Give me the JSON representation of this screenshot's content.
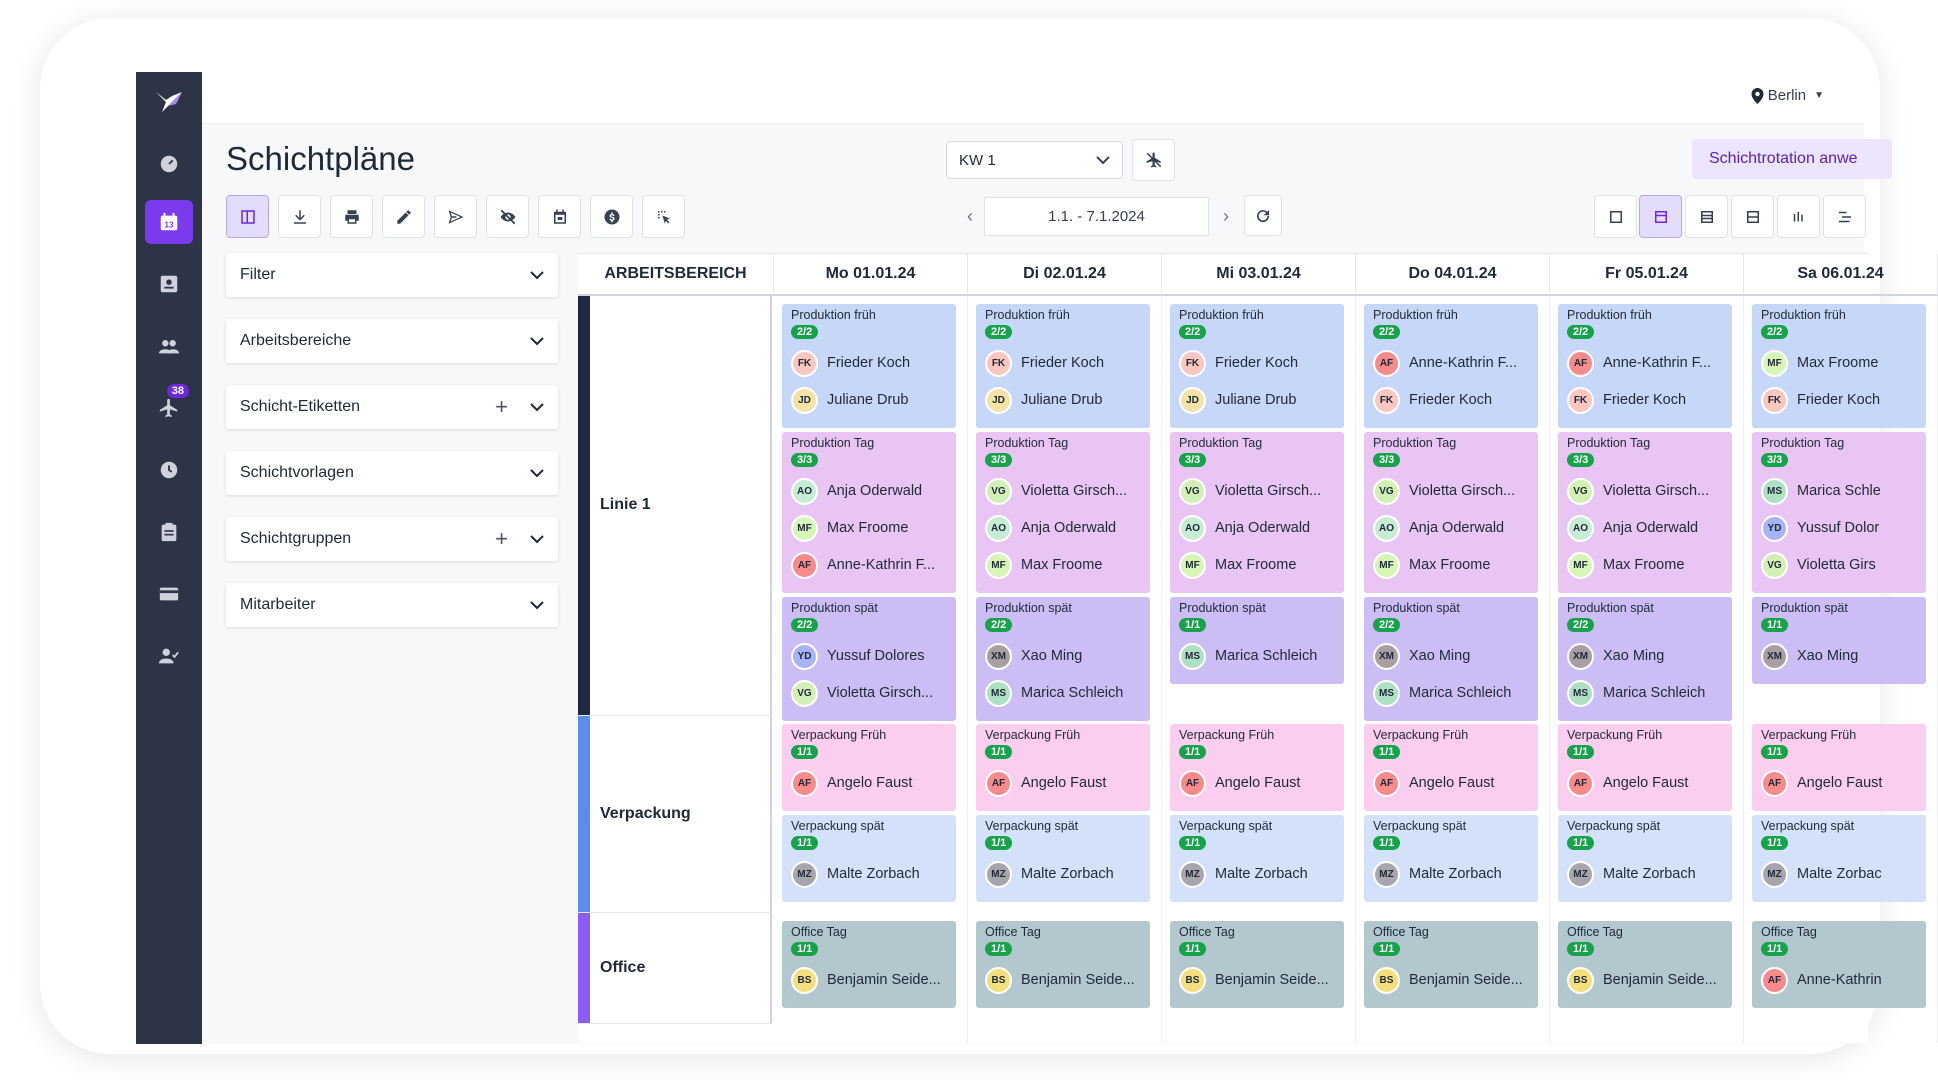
{
  "location": "Berlin",
  "page_title": "Schichtpläne",
  "week_select": "KW 1",
  "date_range": "1.1. - 7.1.2024",
  "rotation_button": "Schichtrotation anwe",
  "rail_badge": "38",
  "rail_calendar_day": "13",
  "panels": [
    "Filter",
    "Arbeitsbereiche",
    "Schicht-Etiketten",
    "Schichtvorlagen",
    "Schichtgruppen",
    "Mitarbeiter"
  ],
  "panel_plus": "+",
  "area_header": "ARBEITSBEREICH",
  "days": [
    "Mo 01.01.24",
    "Di 02.01.24",
    "Mi 03.01.24",
    "Do 04.01.24",
    "Fr 05.01.24",
    "Sa 06.01.24"
  ],
  "areas": [
    {
      "name": "Linie 1",
      "color": "#1e2a44"
    },
    {
      "name": "Verpackung",
      "color": "#5b8def"
    },
    {
      "name": "Office",
      "color": "#8b5cf6"
    }
  ],
  "colors": {
    "früh": "#c7d7f7",
    "tag": "#e8c5f3",
    "spät": "#cdbdf5",
    "vfrüh": "#fbcdef",
    "vspät": "#d3e2fa",
    "office": "#b3c7cf",
    "accent": "#7c3aed",
    "count_pill": "#16a34a"
  },
  "avatar_colors": {
    "FK": "#f9c6c0",
    "JD": "#f3e3a7",
    "AO": "#c6ecd5",
    "MF": "#d6f5b6",
    "AF": "#f78a8a",
    "VG": "#d2f0b5",
    "YD": "#a7b3f5",
    "XM": "#a89ea4",
    "MS": "#aee1c4",
    "MZ": "#a7a5ae",
    "BS": "#f3e07d"
  },
  "schedule": [
    [
      [
        {
          "t": "Produktion früh",
          "c": "2/2",
          "k": "früh",
          "e": [
            [
              "FK",
              "Frieder Koch"
            ],
            [
              "JD",
              "Juliane Drub"
            ]
          ]
        },
        {
          "t": "Produktion Tag",
          "c": "3/3",
          "k": "tag",
          "e": [
            [
              "AO",
              "Anja Oderwald"
            ],
            [
              "MF",
              "Max Froome"
            ],
            [
              "AF",
              "Anne-Kathrin F..."
            ]
          ]
        },
        {
          "t": "Produktion spät",
          "c": "2/2",
          "k": "spät",
          "e": [
            [
              "YD",
              "Yussuf Dolores"
            ],
            [
              "VG",
              "Violetta Girsch..."
            ]
          ]
        }
      ],
      [
        {
          "t": "Produktion früh",
          "c": "2/2",
          "k": "früh",
          "e": [
            [
              "FK",
              "Frieder Koch"
            ],
            [
              "JD",
              "Juliane Drub"
            ]
          ]
        },
        {
          "t": "Produktion Tag",
          "c": "3/3",
          "k": "tag",
          "e": [
            [
              "VG",
              "Violetta Girsch..."
            ],
            [
              "AO",
              "Anja Oderwald"
            ],
            [
              "MF",
              "Max Froome"
            ]
          ]
        },
        {
          "t": "Produktion spät",
          "c": "2/2",
          "k": "spät",
          "e": [
            [
              "XM",
              "Xao Ming"
            ],
            [
              "MS",
              "Marica Schleich"
            ]
          ]
        }
      ],
      [
        {
          "t": "Produktion früh",
          "c": "2/2",
          "k": "früh",
          "e": [
            [
              "FK",
              "Frieder Koch"
            ],
            [
              "JD",
              "Juliane Drub"
            ]
          ]
        },
        {
          "t": "Produktion Tag",
          "c": "3/3",
          "k": "tag",
          "e": [
            [
              "VG",
              "Violetta Girsch..."
            ],
            [
              "AO",
              "Anja Oderwald"
            ],
            [
              "MF",
              "Max Froome"
            ]
          ]
        },
        {
          "t": "Produktion spät",
          "c": "1/1",
          "k": "spät",
          "e": [
            [
              "MS",
              "Marica Schleich"
            ]
          ]
        }
      ],
      [
        {
          "t": "Produktion früh",
          "c": "2/2",
          "k": "früh",
          "e": [
            [
              "AF",
              "Anne-Kathrin F..."
            ],
            [
              "FK",
              "Frieder Koch"
            ]
          ]
        },
        {
          "t": "Produktion Tag",
          "c": "3/3",
          "k": "tag",
          "e": [
            [
              "VG",
              "Violetta Girsch..."
            ],
            [
              "AO",
              "Anja Oderwald"
            ],
            [
              "MF",
              "Max Froome"
            ]
          ]
        },
        {
          "t": "Produktion spät",
          "c": "2/2",
          "k": "spät",
          "e": [
            [
              "XM",
              "Xao Ming"
            ],
            [
              "MS",
              "Marica Schleich"
            ]
          ]
        }
      ],
      [
        {
          "t": "Produktion früh",
          "c": "2/2",
          "k": "früh",
          "e": [
            [
              "AF",
              "Anne-Kathrin F..."
            ],
            [
              "FK",
              "Frieder Koch"
            ]
          ]
        },
        {
          "t": "Produktion Tag",
          "c": "3/3",
          "k": "tag",
          "e": [
            [
              "VG",
              "Violetta Girsch..."
            ],
            [
              "AO",
              "Anja Oderwald"
            ],
            [
              "MF",
              "Max Froome"
            ]
          ]
        },
        {
          "t": "Produktion spät",
          "c": "2/2",
          "k": "spät",
          "e": [
            [
              "XM",
              "Xao Ming"
            ],
            [
              "MS",
              "Marica Schleich"
            ]
          ]
        }
      ],
      [
        {
          "t": "Produktion früh",
          "c": "2/2",
          "k": "früh",
          "e": [
            [
              "MF",
              "Max Froome"
            ],
            [
              "FK",
              "Frieder Koch"
            ]
          ]
        },
        {
          "t": "Produktion Tag",
          "c": "3/3",
          "k": "tag",
          "e": [
            [
              "MS",
              "Marica Schle"
            ],
            [
              "YD",
              "Yussuf Dolor"
            ],
            [
              "VG",
              "Violetta Girs"
            ]
          ]
        },
        {
          "t": "Produktion spät",
          "c": "1/1",
          "k": "spät",
          "e": [
            [
              "XM",
              "Xao Ming"
            ]
          ]
        }
      ]
    ],
    [
      [
        {
          "t": "Verpackung Früh",
          "c": "1/1",
          "k": "vfrüh",
          "e": [
            [
              "AF",
              "Angelo Faust"
            ]
          ]
        },
        {
          "t": "Verpackung spät",
          "c": "1/1",
          "k": "vspät",
          "e": [
            [
              "MZ",
              "Malte Zorbach"
            ]
          ]
        }
      ],
      [
        {
          "t": "Verpackung Früh",
          "c": "1/1",
          "k": "vfrüh",
          "e": [
            [
              "AF",
              "Angelo Faust"
            ]
          ]
        },
        {
          "t": "Verpackung spät",
          "c": "1/1",
          "k": "vspät",
          "e": [
            [
              "MZ",
              "Malte Zorbach"
            ]
          ]
        }
      ],
      [
        {
          "t": "Verpackung Früh",
          "c": "1/1",
          "k": "vfrüh",
          "e": [
            [
              "AF",
              "Angelo Faust"
            ]
          ]
        },
        {
          "t": "Verpackung spät",
          "c": "1/1",
          "k": "vspät",
          "e": [
            [
              "MZ",
              "Malte Zorbach"
            ]
          ]
        }
      ],
      [
        {
          "t": "Verpackung Früh",
          "c": "1/1",
          "k": "vfrüh",
          "e": [
            [
              "AF",
              "Angelo Faust"
            ]
          ]
        },
        {
          "t": "Verpackung spät",
          "c": "1/1",
          "k": "vspät",
          "e": [
            [
              "MZ",
              "Malte Zorbach"
            ]
          ]
        }
      ],
      [
        {
          "t": "Verpackung Früh",
          "c": "1/1",
          "k": "vfrüh",
          "e": [
            [
              "AF",
              "Angelo Faust"
            ]
          ]
        },
        {
          "t": "Verpackung spät",
          "c": "1/1",
          "k": "vspät",
          "e": [
            [
              "MZ",
              "Malte Zorbach"
            ]
          ]
        }
      ],
      [
        {
          "t": "Verpackung Früh",
          "c": "1/1",
          "k": "vfrüh",
          "e": [
            [
              "AF",
              "Angelo Faust"
            ]
          ]
        },
        {
          "t": "Verpackung spät",
          "c": "1/1",
          "k": "vspät",
          "e": [
            [
              "MZ",
              "Malte Zorbac"
            ]
          ]
        }
      ]
    ],
    [
      [
        {
          "t": "Office Tag",
          "c": "1/1",
          "k": "office",
          "e": [
            [
              "BS",
              "Benjamin Seide..."
            ]
          ]
        }
      ],
      [
        {
          "t": "Office Tag",
          "c": "1/1",
          "k": "office",
          "e": [
            [
              "BS",
              "Benjamin Seide..."
            ]
          ]
        }
      ],
      [
        {
          "t": "Office Tag",
          "c": "1/1",
          "k": "office",
          "e": [
            [
              "BS",
              "Benjamin Seide..."
            ]
          ]
        }
      ],
      [
        {
          "t": "Office Tag",
          "c": "1/1",
          "k": "office",
          "e": [
            [
              "BS",
              "Benjamin Seide..."
            ]
          ]
        }
      ],
      [
        {
          "t": "Office Tag",
          "c": "1/1",
          "k": "office",
          "e": [
            [
              "BS",
              "Benjamin Seide..."
            ]
          ]
        }
      ],
      [
        {
          "t": "Office Tag",
          "c": "1/1",
          "k": "office",
          "e": [
            [
              "AF",
              "Anne-Kathrin"
            ]
          ]
        }
      ]
    ]
  ]
}
